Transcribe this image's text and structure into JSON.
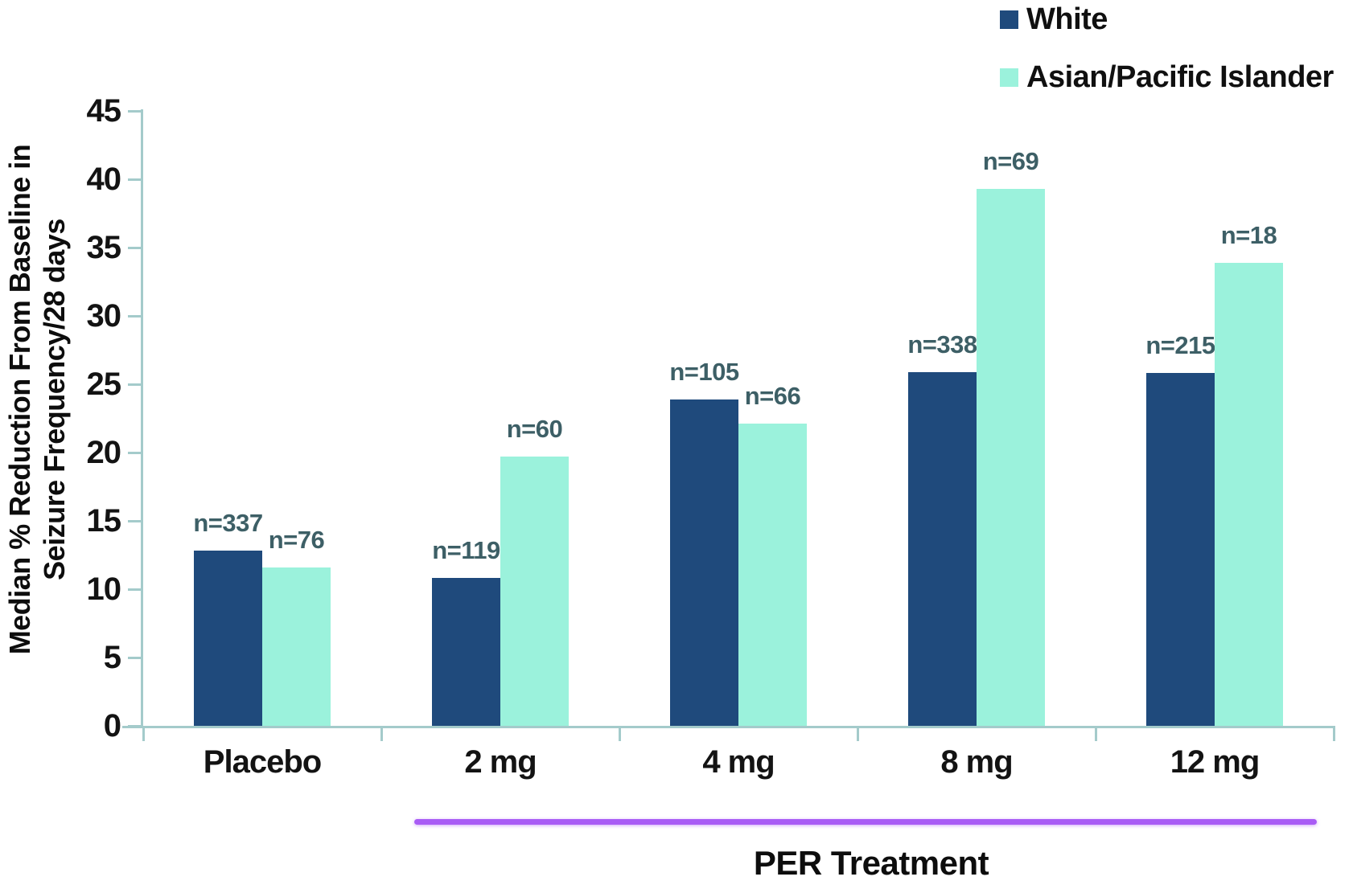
{
  "chart_data": {
    "type": "bar",
    "title": "",
    "categories": [
      "Placebo",
      "2 mg",
      "4 mg",
      "8 mg",
      "12 mg"
    ],
    "series": [
      {
        "name": "White",
        "color": "#1F4A7C",
        "values": [
          12.8,
          10.8,
          23.9,
          25.9,
          25.8
        ],
        "n_labels": [
          "n=337",
          "n=119",
          "n=105",
          "n=338",
          "n=215"
        ]
      },
      {
        "name": "Asian/Pacific Islander",
        "color": "#9BF2DC",
        "values": [
          11.6,
          19.7,
          22.1,
          39.3,
          33.9
        ],
        "n_labels": [
          "n=76",
          "n=60",
          "n=66",
          "n=69",
          "n=18"
        ]
      }
    ],
    "ylabel_line1": "Median % Reduction From Baseline in",
    "ylabel_line2": "Seizure Frequency/28 days",
    "xlabel": "PER Treatment",
    "yticks": [
      0,
      5,
      10,
      15,
      20,
      25,
      30,
      35,
      40,
      45
    ],
    "ylim": [
      0,
      45
    ],
    "grid": false,
    "legend_position": "top-right",
    "axis_color": "#A4CBCB",
    "tick_label_color": "#131313",
    "n_label_color": "#3D5F66",
    "annotation_underline": {
      "categories_spanned": [
        "2 mg",
        "4 mg",
        "8 mg",
        "12 mg"
      ],
      "color": "#A95CF5"
    }
  }
}
